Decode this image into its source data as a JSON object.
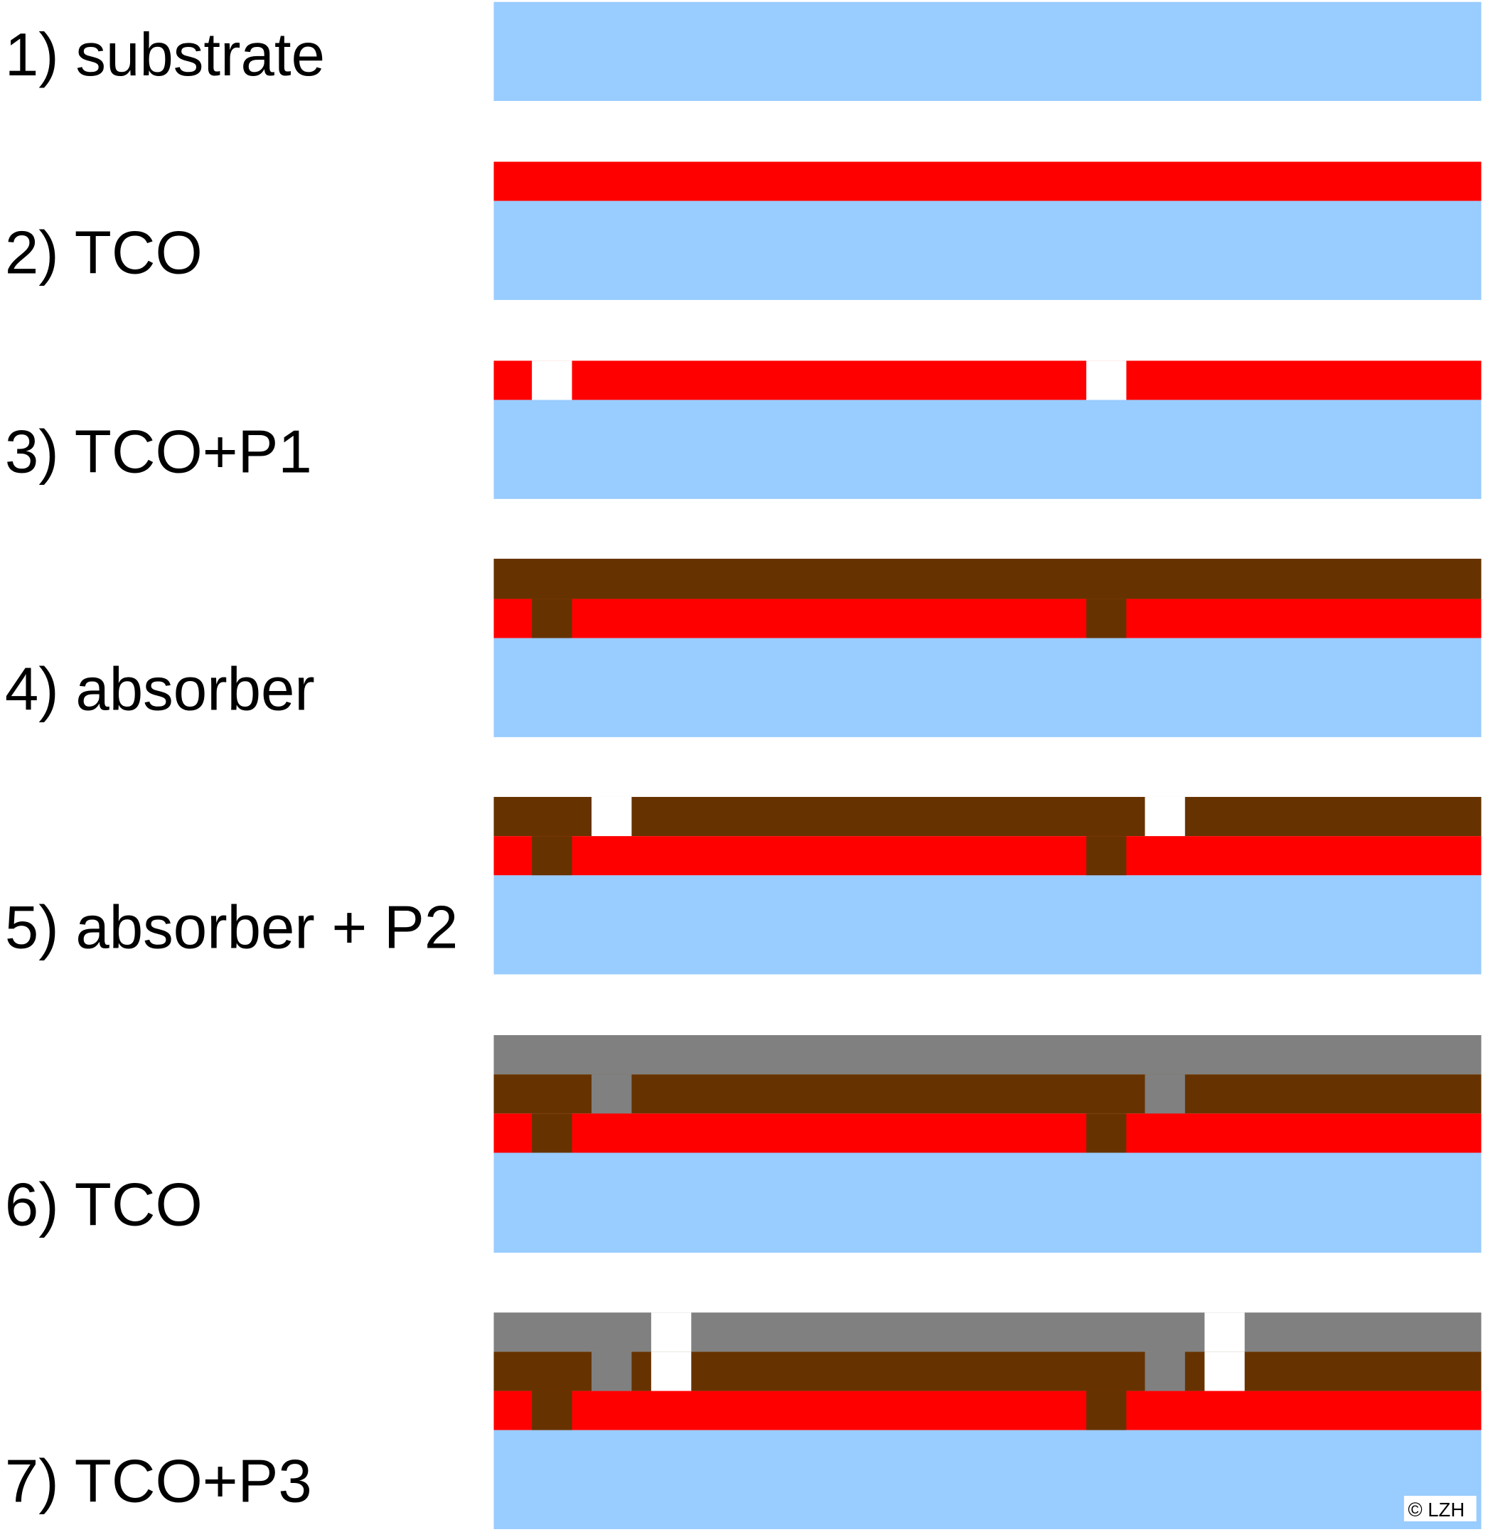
{
  "steps": [
    "1) substrate",
    "2) TCO",
    "3) TCO+P1",
    "4) absorber",
    "5) absorber + P2",
    "6) TCO",
    "7) TCO+P3"
  ],
  "copyright": "© LZH"
}
